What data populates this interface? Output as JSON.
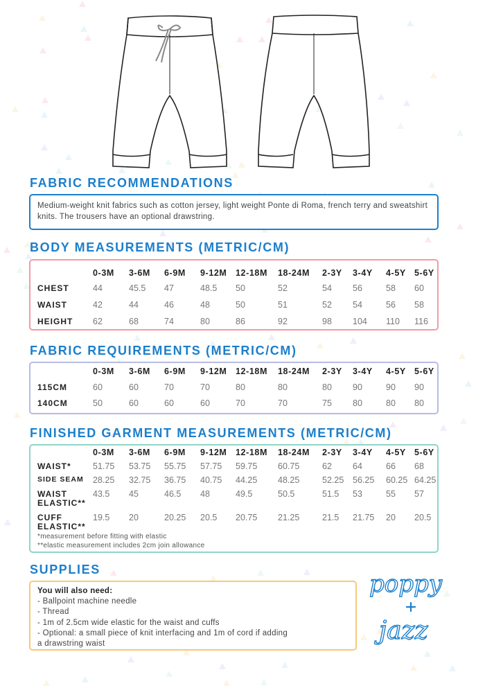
{
  "colors": {
    "heading": "#1b7fcc",
    "fabric_box": "#1b7fcc",
    "body_box": "#f29aa6",
    "requirements_box": "#b8bbe2",
    "finished_box": "#8fd5c9",
    "supplies_box": "#f7c87a"
  },
  "fabric": {
    "title": "FABRIC RECOMMENDATIONS",
    "text": "Medium-weight knit fabrics such as cotton jersey, light weight Ponte di Roma, french terry and sweatshirt knits. The trousers have an optional drawstring."
  },
  "sizes": [
    "0-3M",
    "3-6M",
    "6-9M",
    "9-12M",
    "12-18M",
    "18-24M",
    "2-3Y",
    "3-4Y",
    "4-5Y",
    "5-6Y"
  ],
  "body": {
    "title": "BODY MEASUREMENTS (METRIC/CM)",
    "rows": [
      {
        "label": "CHEST",
        "values": [
          "44",
          "45.5",
          "47",
          "48.5",
          "50",
          "52",
          "54",
          "56",
          "58",
          "60"
        ]
      },
      {
        "label": "WAIST",
        "values": [
          "42",
          "44",
          "46",
          "48",
          "50",
          "51",
          "52",
          "54",
          "56",
          "58"
        ]
      },
      {
        "label": "HEIGHT",
        "values": [
          "62",
          "68",
          "74",
          "80",
          "86",
          "92",
          "98",
          "104",
          "110",
          "116"
        ]
      }
    ]
  },
  "requirements": {
    "title": "FABRIC REQUIREMENTS (METRIC/CM)",
    "rows": [
      {
        "label": "115CM",
        "values": [
          "60",
          "60",
          "70",
          "70",
          "80",
          "80",
          "80",
          "90",
          "90",
          "90"
        ]
      },
      {
        "label": "140CM",
        "values": [
          "50",
          "60",
          "60",
          "60",
          "70",
          "70",
          "75",
          "80",
          "80",
          "80"
        ]
      }
    ]
  },
  "finished": {
    "title": "FINISHED GARMENT MEASUREMENTS (METRIC/CM)",
    "rows": [
      {
        "label": "WAIST*",
        "values": [
          "51.75",
          "53.75",
          "55.75",
          "57.75",
          "59.75",
          "60.75",
          "62",
          "64",
          "66",
          "68"
        ]
      },
      {
        "label": "SIDE SEAM",
        "values": [
          "28.25",
          "32.75",
          "36.75",
          "40.75",
          "44.25",
          "48.25",
          "52.25",
          "56.25",
          "60.25",
          "64.25"
        ]
      },
      {
        "label": "WAIST",
        "label2": "ELASTIC**",
        "values": [
          "43.5",
          "45",
          "46.5",
          "48",
          "49.5",
          "50.5",
          "51.5",
          "53",
          "55",
          "57"
        ]
      },
      {
        "label": "CUFF",
        "label2": "ELASTIC**",
        "values": [
          "19.5",
          "20",
          "20.25",
          "20.5",
          "20.75",
          "21.25",
          "21.5",
          "21.75",
          "20",
          "20.5"
        ]
      }
    ],
    "notes": [
      "*measurement before fitting with elastic",
      "**elastic measurement includes 2cm join allowance"
    ]
  },
  "supplies": {
    "title": "SUPPLIES",
    "intro": "You will also need:",
    "items": [
      "- Ballpoint machine needle",
      "- Thread",
      "- 1m of 2.5cm wide elastic for the waist and cuffs",
      "- Optional: a small piece of knit interfacing and 1m of cord if adding",
      "a drawstring waist"
    ]
  },
  "logo": {
    "text": "poppy + jazz"
  }
}
